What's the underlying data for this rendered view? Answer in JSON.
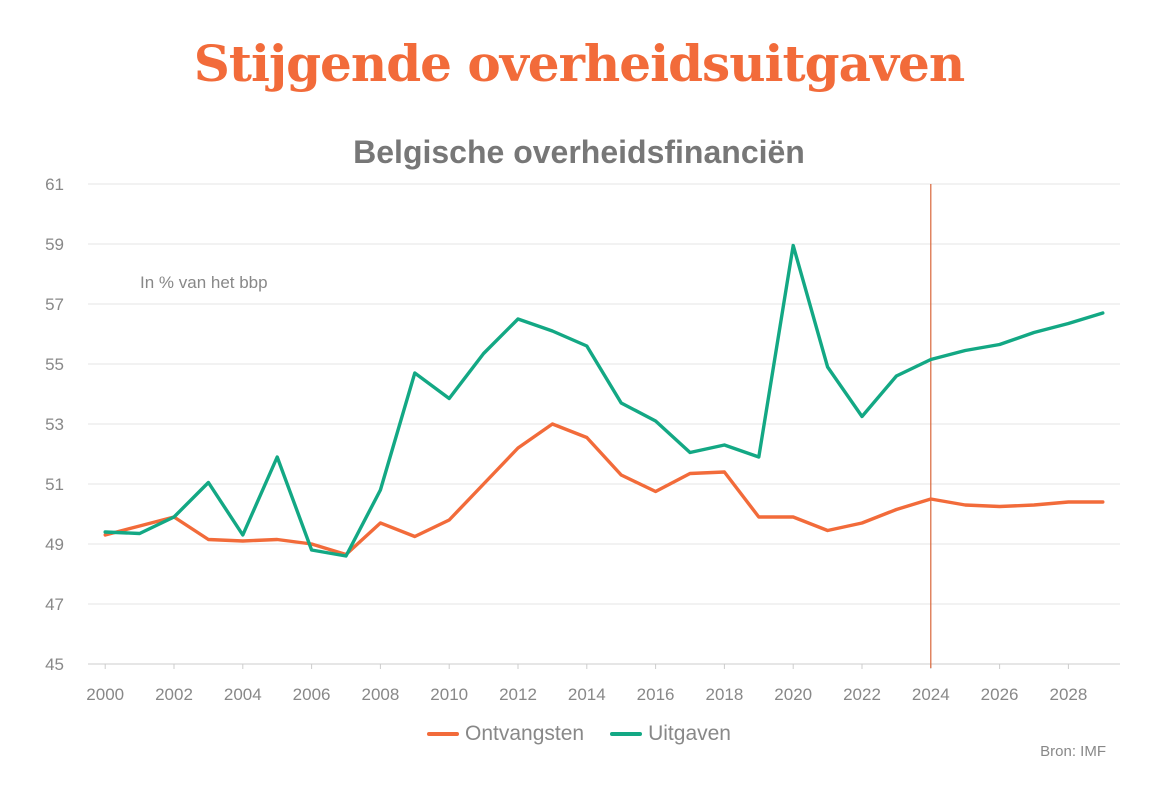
{
  "colors": {
    "headline": "#f26b3a",
    "ontvangsten": "#f26b3a",
    "uitgaven": "#13a884",
    "marker": "#d9663a",
    "grid": "#e4e4e4",
    "axis": "#cccccc",
    "text": "#888888",
    "subtitle": "#777777"
  },
  "headline": "Stijgende overheidsuitgaven",
  "source": "Bron: IMF",
  "chart_data": {
    "type": "line",
    "title": "Belgische overheidsfinanciën",
    "annotation": "In % van het bbp",
    "x": [
      2000,
      2001,
      2002,
      2003,
      2004,
      2005,
      2006,
      2007,
      2008,
      2009,
      2010,
      2011,
      2012,
      2013,
      2014,
      2015,
      2016,
      2017,
      2018,
      2019,
      2020,
      2021,
      2022,
      2023,
      2024,
      2025,
      2026,
      2027,
      2028,
      2029
    ],
    "xlim": [
      1999.5,
      2029.5
    ],
    "ylim": [
      45,
      61
    ],
    "yticks": [
      45,
      47,
      49,
      51,
      53,
      55,
      57,
      59,
      61
    ],
    "xticks": [
      2000,
      2002,
      2004,
      2006,
      2008,
      2010,
      2012,
      2014,
      2016,
      2018,
      2020,
      2022,
      2024,
      2026,
      2028
    ],
    "vline": 2024,
    "grid": true,
    "legend": "bottom-center",
    "series": [
      {
        "name": "Ontvangsten",
        "values": [
          49.3,
          49.6,
          49.9,
          49.15,
          49.1,
          49.15,
          49.0,
          48.65,
          49.7,
          49.25,
          49.8,
          51.0,
          52.2,
          53.0,
          52.55,
          51.3,
          50.75,
          51.35,
          51.4,
          49.9,
          49.9,
          49.45,
          49.7,
          50.15,
          50.5,
          50.3,
          50.25,
          50.3,
          50.4,
          50.4
        ]
      },
      {
        "name": "Uitgaven",
        "values": [
          49.4,
          49.35,
          49.9,
          51.05,
          49.3,
          51.9,
          48.8,
          48.6,
          50.8,
          54.7,
          53.85,
          55.35,
          56.5,
          56.1,
          55.6,
          53.7,
          53.1,
          52.05,
          52.3,
          51.9,
          58.95,
          54.9,
          53.25,
          54.6,
          55.15,
          55.45,
          55.65,
          56.05,
          56.35,
          56.7
        ]
      }
    ]
  }
}
